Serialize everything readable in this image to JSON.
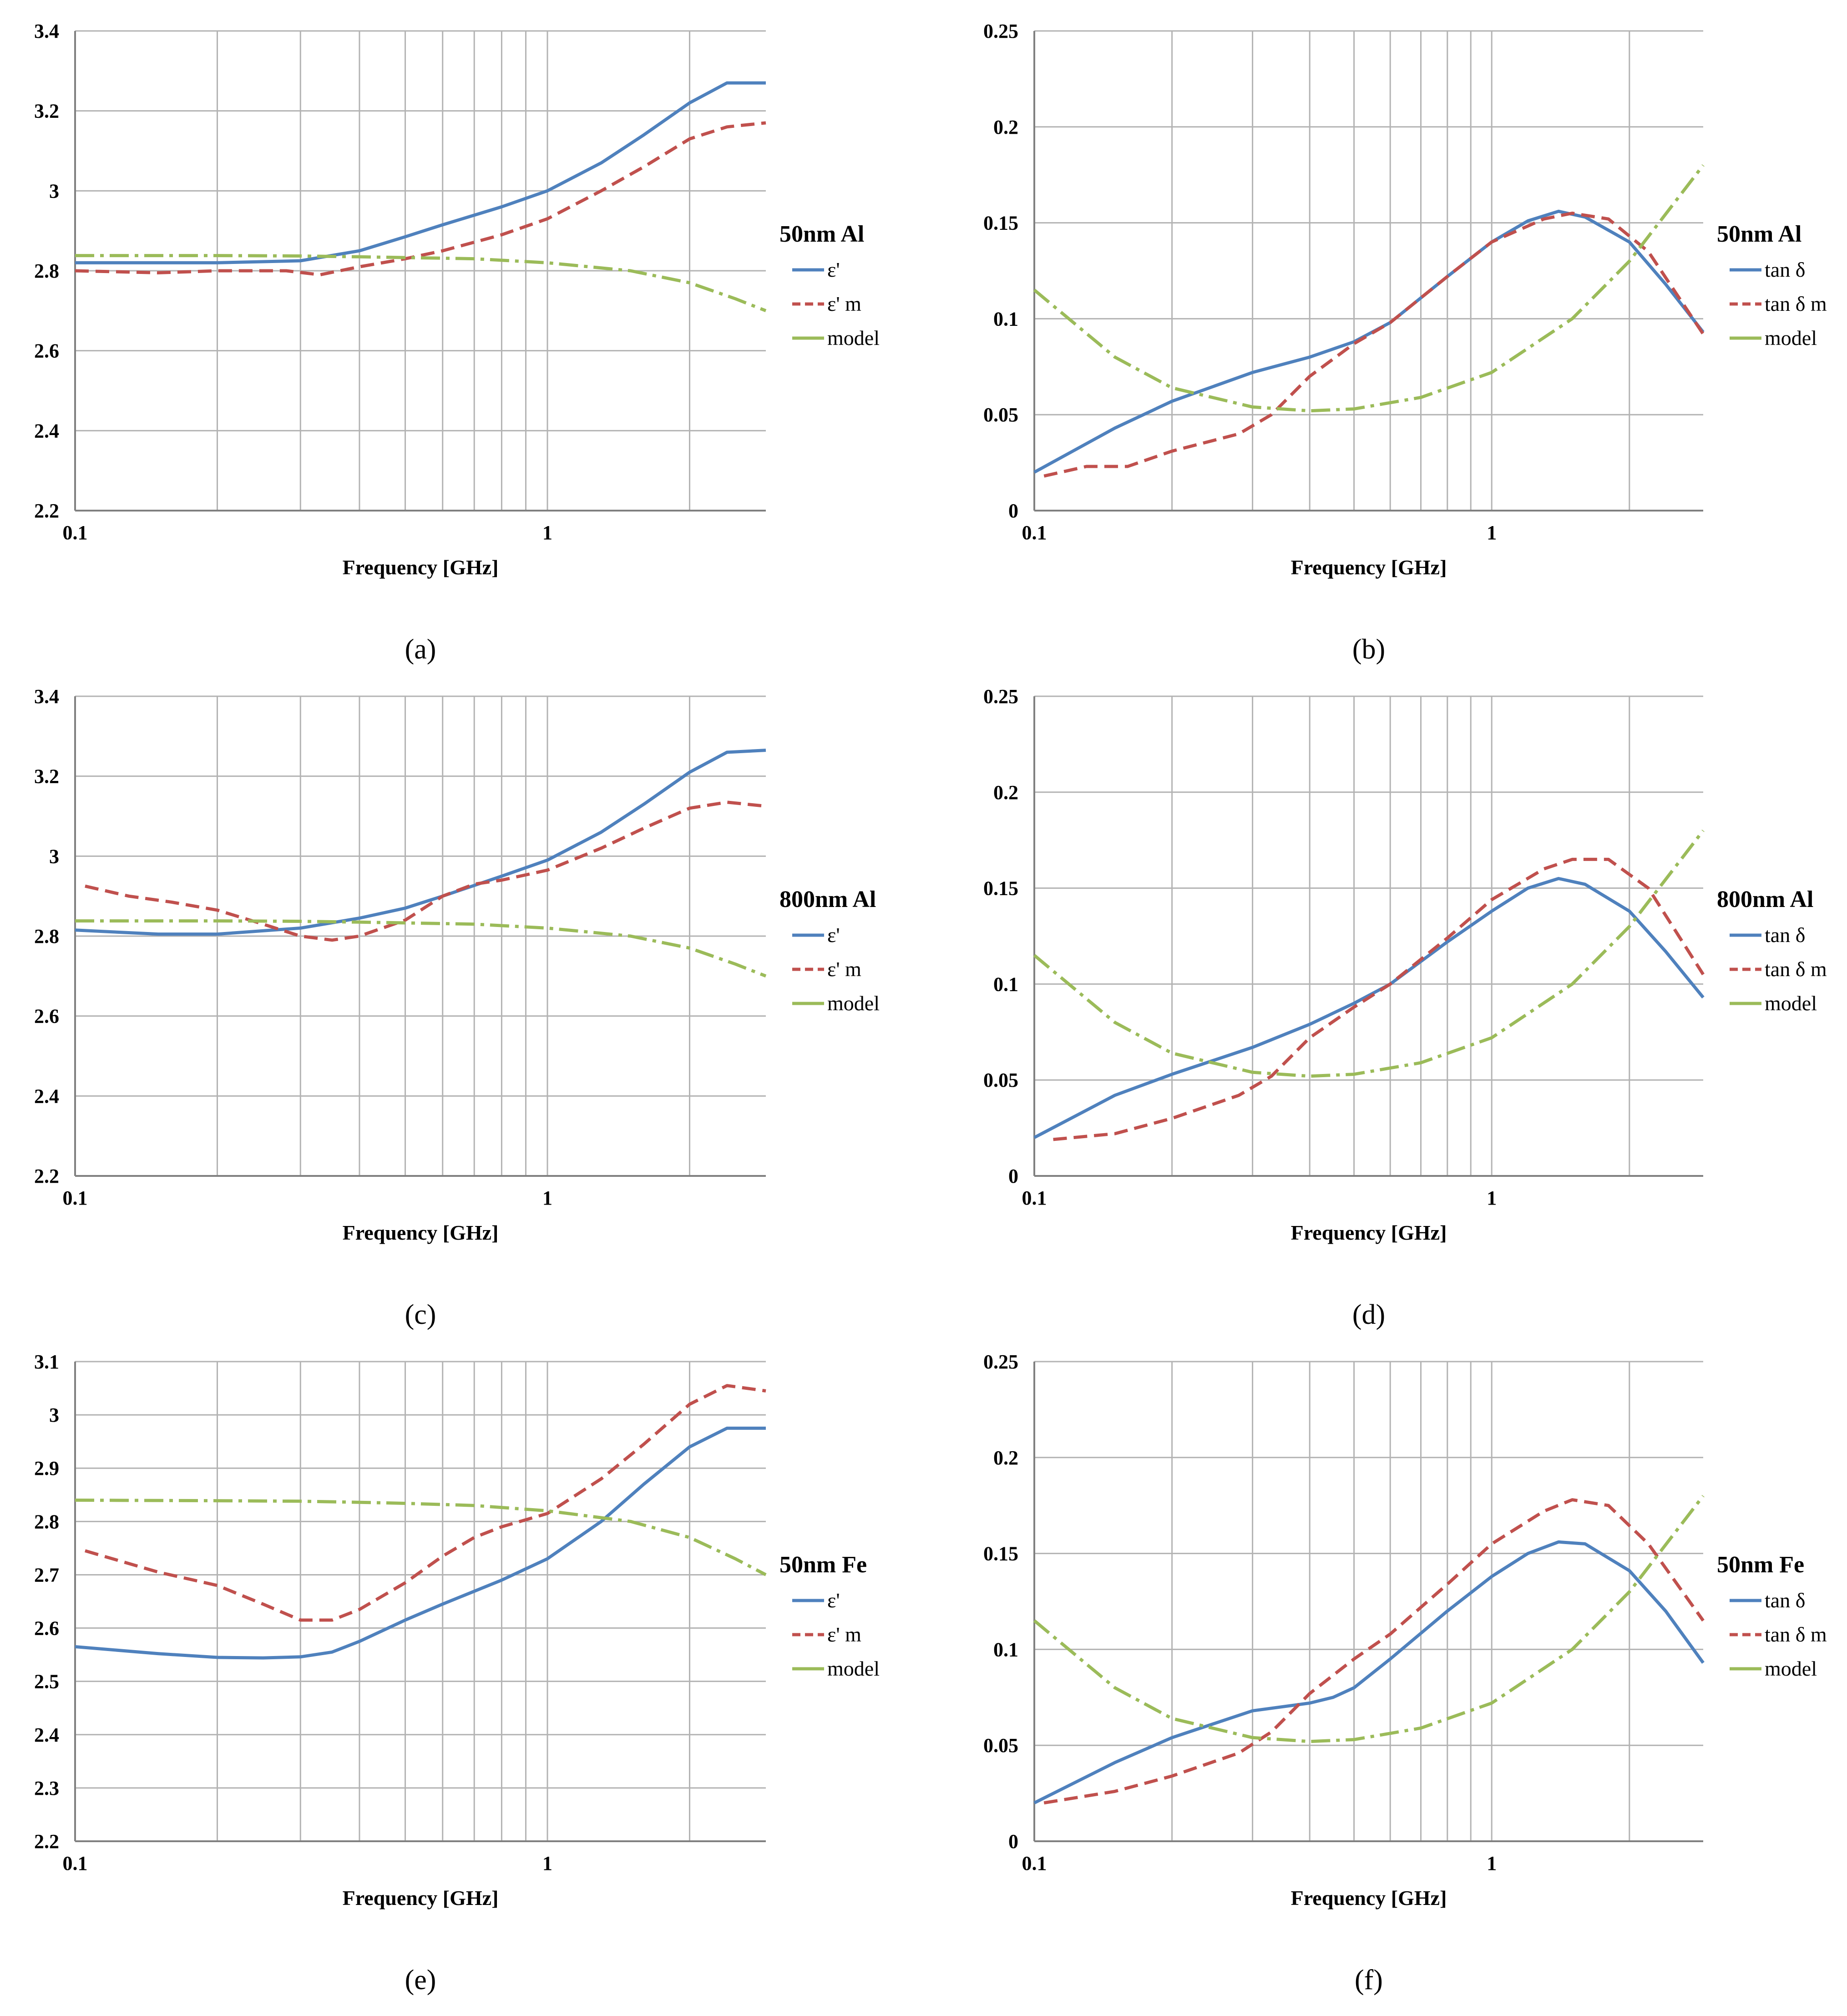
{
  "colors": {
    "eps": "#4f81bd",
    "meas": "#c0504d",
    "model": "#9bbb59",
    "grid": "#b3b3b3",
    "axis": "#808080"
  },
  "chart_data": [
    {
      "id": "a",
      "caption": "(a)",
      "type": "line",
      "xscale": "log",
      "xlim": [
        0.1,
        2.9
      ],
      "ylim": [
        2.2,
        3.4
      ],
      "xticks": [
        {
          "v": 0.1,
          "label": "0.1"
        },
        {
          "v": 1,
          "label": "1"
        }
      ],
      "yticks": [
        {
          "v": 2.2,
          "label": "2.2"
        },
        {
          "v": 2.4,
          "label": "2.4"
        },
        {
          "v": 2.6,
          "label": "2.6"
        },
        {
          "v": 2.8,
          "label": "2.8"
        },
        {
          "v": 3.0,
          "label": "3"
        },
        {
          "v": 3.2,
          "label": "3.2"
        },
        {
          "v": 3.4,
          "label": "3.4"
        }
      ],
      "xlabel": "Frequency [GHz]",
      "sample_label": "50nm Al",
      "grid": true,
      "legend_position": "right",
      "series": [
        {
          "name": "ε'",
          "style": "solid",
          "color_key": "eps",
          "x": [
            0.1,
            0.2,
            0.3,
            0.4,
            0.5,
            0.6,
            0.8,
            1.0,
            1.3,
            1.6,
            2.0,
            2.4,
            2.9
          ],
          "y": [
            2.82,
            2.82,
            2.825,
            2.85,
            2.885,
            2.915,
            2.96,
            3.0,
            3.07,
            3.14,
            3.22,
            3.27,
            3.27
          ]
        },
        {
          "name": "ε' m",
          "style": "dashed",
          "color_key": "meas",
          "x": [
            0.1,
            0.15,
            0.2,
            0.28,
            0.33,
            0.4,
            0.5,
            0.6,
            0.8,
            1.0,
            1.3,
            1.6,
            2.0,
            2.4,
            2.9
          ],
          "y": [
            2.8,
            2.795,
            2.8,
            2.8,
            2.79,
            2.81,
            2.83,
            2.85,
            2.89,
            2.93,
            3.0,
            3.06,
            3.13,
            3.16,
            3.17
          ]
        },
        {
          "name": "model",
          "style": "dashdot",
          "color_key": "model",
          "x": [
            0.1,
            0.2,
            0.3,
            0.4,
            0.5,
            0.7,
            1.0,
            1.5,
            2.0,
            2.5,
            2.9
          ],
          "y": [
            2.838,
            2.838,
            2.837,
            2.835,
            2.833,
            2.83,
            2.82,
            2.8,
            2.77,
            2.73,
            2.7
          ]
        }
      ]
    },
    {
      "id": "b",
      "caption": "(b)",
      "type": "line",
      "xscale": "log",
      "xlim": [
        0.1,
        2.9
      ],
      "ylim": [
        0,
        0.25
      ],
      "xticks": [
        {
          "v": 0.1,
          "label": "0.1"
        },
        {
          "v": 1,
          "label": "1"
        }
      ],
      "yticks": [
        {
          "v": 0,
          "label": "0"
        },
        {
          "v": 0.05,
          "label": "0.05"
        },
        {
          "v": 0.1,
          "label": "0.1"
        },
        {
          "v": 0.15,
          "label": "0.15"
        },
        {
          "v": 0.2,
          "label": "0.2"
        },
        {
          "v": 0.25,
          "label": "0.25"
        }
      ],
      "xlabel": "Frequency [GHz]",
      "sample_label": "50nm Al",
      "grid": true,
      "legend_position": "right",
      "series": [
        {
          "name": "tan δ",
          "style": "solid",
          "color_key": "eps",
          "x": [
            0.1,
            0.15,
            0.2,
            0.3,
            0.4,
            0.5,
            0.6,
            0.8,
            1.0,
            1.2,
            1.4,
            1.6,
            2.0,
            2.4,
            2.9
          ],
          "y": [
            0.02,
            0.043,
            0.057,
            0.072,
            0.08,
            0.088,
            0.098,
            0.122,
            0.14,
            0.151,
            0.156,
            0.153,
            0.14,
            0.118,
            0.093
          ]
        },
        {
          "name": "tan δ m",
          "style": "dashed",
          "color_key": "meas",
          "x": [
            0.105,
            0.13,
            0.16,
            0.2,
            0.28,
            0.33,
            0.4,
            0.5,
            0.6,
            0.8,
            1.0,
            1.3,
            1.5,
            1.8,
            2.2,
            2.9
          ],
          "y": [
            0.018,
            0.023,
            0.023,
            0.031,
            0.04,
            0.05,
            0.07,
            0.087,
            0.098,
            0.122,
            0.14,
            0.152,
            0.155,
            0.152,
            0.135,
            0.092
          ]
        },
        {
          "name": "model",
          "style": "dashdot",
          "color_key": "model",
          "x": [
            0.1,
            0.15,
            0.2,
            0.3,
            0.4,
            0.5,
            0.7,
            1.0,
            1.5,
            2.0,
            2.5,
            2.9
          ],
          "y": [
            0.115,
            0.08,
            0.064,
            0.054,
            0.052,
            0.053,
            0.059,
            0.072,
            0.1,
            0.13,
            0.16,
            0.18
          ]
        }
      ]
    },
    {
      "id": "c",
      "caption": "(c)",
      "type": "line",
      "xscale": "log",
      "xlim": [
        0.1,
        2.9
      ],
      "ylim": [
        2.2,
        3.4
      ],
      "xticks": [
        {
          "v": 0.1,
          "label": "0.1"
        },
        {
          "v": 1,
          "label": "1"
        }
      ],
      "yticks": [
        {
          "v": 2.2,
          "label": "2.2"
        },
        {
          "v": 2.4,
          "label": "2.4"
        },
        {
          "v": 2.6,
          "label": "2.6"
        },
        {
          "v": 2.8,
          "label": "2.8"
        },
        {
          "v": 3.0,
          "label": "3"
        },
        {
          "v": 3.2,
          "label": "3.2"
        },
        {
          "v": 3.4,
          "label": "3.4"
        }
      ],
      "xlabel": "Frequency [GHz]",
      "sample_label": "800nm Al",
      "grid": true,
      "legend_position": "right",
      "series": [
        {
          "name": "ε'",
          "style": "solid",
          "color_key": "eps",
          "x": [
            0.1,
            0.15,
            0.2,
            0.3,
            0.4,
            0.5,
            0.6,
            0.8,
            1.0,
            1.3,
            1.6,
            2.0,
            2.4,
            2.9
          ],
          "y": [
            2.815,
            2.805,
            2.805,
            2.82,
            2.845,
            2.87,
            2.9,
            2.95,
            2.99,
            3.06,
            3.13,
            3.21,
            3.26,
            3.265
          ]
        },
        {
          "name": "ε' m",
          "style": "dashed",
          "color_key": "meas",
          "x": [
            0.105,
            0.13,
            0.16,
            0.2,
            0.25,
            0.3,
            0.35,
            0.4,
            0.5,
            0.6,
            0.7,
            0.8,
            1.0,
            1.3,
            1.6,
            2.0,
            2.4,
            2.9
          ],
          "y": [
            2.925,
            2.9,
            2.885,
            2.865,
            2.83,
            2.8,
            2.79,
            2.8,
            2.84,
            2.9,
            2.93,
            2.94,
            2.965,
            3.02,
            3.07,
            3.12,
            3.135,
            3.125
          ]
        },
        {
          "name": "model",
          "style": "dashdot",
          "color_key": "model",
          "x": [
            0.1,
            0.2,
            0.3,
            0.4,
            0.5,
            0.7,
            1.0,
            1.5,
            2.0,
            2.5,
            2.9
          ],
          "y": [
            2.838,
            2.838,
            2.837,
            2.835,
            2.833,
            2.83,
            2.82,
            2.8,
            2.77,
            2.73,
            2.7
          ]
        }
      ]
    },
    {
      "id": "d",
      "caption": "(d)",
      "type": "line",
      "xscale": "log",
      "xlim": [
        0.1,
        2.9
      ],
      "ylim": [
        0,
        0.25
      ],
      "xticks": [
        {
          "v": 0.1,
          "label": "0.1"
        },
        {
          "v": 1,
          "label": "1"
        }
      ],
      "yticks": [
        {
          "v": 0,
          "label": "0"
        },
        {
          "v": 0.05,
          "label": "0.05"
        },
        {
          "v": 0.1,
          "label": "0.1"
        },
        {
          "v": 0.15,
          "label": "0.15"
        },
        {
          "v": 0.2,
          "label": "0.2"
        },
        {
          "v": 0.25,
          "label": "0.25"
        }
      ],
      "xlabel": "Frequency [GHz]",
      "sample_label": "800nm Al",
      "grid": true,
      "legend_position": "right",
      "series": [
        {
          "name": "tan δ",
          "style": "solid",
          "color_key": "eps",
          "x": [
            0.1,
            0.15,
            0.2,
            0.3,
            0.4,
            0.5,
            0.6,
            0.8,
            1.0,
            1.2,
            1.4,
            1.6,
            2.0,
            2.4,
            2.9
          ],
          "y": [
            0.02,
            0.042,
            0.053,
            0.067,
            0.079,
            0.09,
            0.1,
            0.122,
            0.138,
            0.15,
            0.155,
            0.152,
            0.138,
            0.117,
            0.093
          ]
        },
        {
          "name": "tan δ m",
          "style": "dashed",
          "color_key": "meas",
          "x": [
            0.11,
            0.15,
            0.2,
            0.28,
            0.33,
            0.4,
            0.5,
            0.6,
            0.8,
            1.0,
            1.3,
            1.5,
            1.8,
            2.2,
            2.9
          ],
          "y": [
            0.019,
            0.022,
            0.03,
            0.042,
            0.052,
            0.072,
            0.088,
            0.1,
            0.124,
            0.144,
            0.16,
            0.165,
            0.165,
            0.15,
            0.105
          ]
        },
        {
          "name": "model",
          "style": "dashdot",
          "color_key": "model",
          "x": [
            0.1,
            0.15,
            0.2,
            0.3,
            0.4,
            0.5,
            0.7,
            1.0,
            1.5,
            2.0,
            2.5,
            2.9
          ],
          "y": [
            0.115,
            0.08,
            0.064,
            0.054,
            0.052,
            0.053,
            0.059,
            0.072,
            0.1,
            0.13,
            0.16,
            0.18
          ]
        }
      ]
    },
    {
      "id": "e",
      "caption": "(e)",
      "type": "line",
      "xscale": "log",
      "xlim": [
        0.1,
        2.9
      ],
      "ylim": [
        2.2,
        3.1
      ],
      "xticks": [
        {
          "v": 0.1,
          "label": "0.1"
        },
        {
          "v": 1,
          "label": "1"
        }
      ],
      "yticks": [
        {
          "v": 2.2,
          "label": "2.2"
        },
        {
          "v": 2.3,
          "label": "2.3"
        },
        {
          "v": 2.4,
          "label": "2.4"
        },
        {
          "v": 2.5,
          "label": "2.5"
        },
        {
          "v": 2.6,
          "label": "2.6"
        },
        {
          "v": 2.7,
          "label": "2.7"
        },
        {
          "v": 2.8,
          "label": "2.8"
        },
        {
          "v": 2.9,
          "label": "2.9"
        },
        {
          "v": 3.0,
          "label": "3"
        },
        {
          "v": 3.1,
          "label": "3.1"
        }
      ],
      "xlabel": "Frequency [GHz]",
      "sample_label": "50nm Fe",
      "grid": true,
      "legend_position": "right",
      "series": [
        {
          "name": "ε'",
          "style": "solid",
          "color_key": "eps",
          "x": [
            0.1,
            0.15,
            0.2,
            0.25,
            0.3,
            0.35,
            0.4,
            0.5,
            0.6,
            0.8,
            1.0,
            1.3,
            1.6,
            2.0,
            2.4,
            2.9
          ],
          "y": [
            2.565,
            2.552,
            2.545,
            2.544,
            2.546,
            2.555,
            2.575,
            2.615,
            2.645,
            2.69,
            2.73,
            2.8,
            2.87,
            2.94,
            2.975,
            2.975
          ]
        },
        {
          "name": "ε' m",
          "style": "dashed",
          "color_key": "meas",
          "x": [
            0.105,
            0.15,
            0.2,
            0.25,
            0.3,
            0.35,
            0.4,
            0.5,
            0.6,
            0.7,
            0.8,
            1.0,
            1.3,
            1.6,
            2.0,
            2.4,
            2.9
          ],
          "y": [
            2.745,
            2.705,
            2.68,
            2.645,
            2.615,
            2.615,
            2.635,
            2.685,
            2.735,
            2.77,
            2.79,
            2.815,
            2.88,
            2.945,
            3.02,
            3.055,
            3.045
          ]
        },
        {
          "name": "model",
          "style": "dashdot",
          "color_key": "model",
          "x": [
            0.1,
            0.2,
            0.3,
            0.4,
            0.5,
            0.7,
            1.0,
            1.5,
            2.0,
            2.5,
            2.9
          ],
          "y": [
            2.84,
            2.839,
            2.838,
            2.836,
            2.834,
            2.83,
            2.82,
            2.8,
            2.77,
            2.73,
            2.7
          ]
        }
      ]
    },
    {
      "id": "f",
      "caption": "(f)",
      "type": "line",
      "xscale": "log",
      "xlim": [
        0.1,
        2.9
      ],
      "ylim": [
        0,
        0.25
      ],
      "xticks": [
        {
          "v": 0.1,
          "label": "0.1"
        },
        {
          "v": 1,
          "label": "1"
        }
      ],
      "yticks": [
        {
          "v": 0,
          "label": "0"
        },
        {
          "v": 0.05,
          "label": "0.05"
        },
        {
          "v": 0.1,
          "label": "0.1"
        },
        {
          "v": 0.15,
          "label": "0.15"
        },
        {
          "v": 0.2,
          "label": "0.2"
        },
        {
          "v": 0.25,
          "label": "0.25"
        }
      ],
      "xlabel": "Frequency [GHz]",
      "sample_label": "50nm Fe",
      "grid": true,
      "legend_position": "right",
      "series": [
        {
          "name": "tan δ",
          "style": "solid",
          "color_key": "eps",
          "x": [
            0.1,
            0.15,
            0.2,
            0.3,
            0.4,
            0.45,
            0.5,
            0.6,
            0.8,
            1.0,
            1.2,
            1.4,
            1.6,
            2.0,
            2.4,
            2.9
          ],
          "y": [
            0.02,
            0.041,
            0.054,
            0.068,
            0.072,
            0.075,
            0.08,
            0.095,
            0.12,
            0.138,
            0.15,
            0.156,
            0.155,
            0.141,
            0.12,
            0.093
          ]
        },
        {
          "name": "tan δ m",
          "style": "dashed",
          "color_key": "meas",
          "x": [
            0.105,
            0.15,
            0.2,
            0.28,
            0.33,
            0.4,
            0.5,
            0.6,
            0.8,
            1.0,
            1.3,
            1.5,
            1.8,
            2.2,
            2.9
          ],
          "y": [
            0.02,
            0.026,
            0.034,
            0.046,
            0.057,
            0.077,
            0.095,
            0.108,
            0.134,
            0.155,
            0.172,
            0.178,
            0.175,
            0.155,
            0.115
          ]
        },
        {
          "name": "model",
          "style": "dashdot",
          "color_key": "model",
          "x": [
            0.1,
            0.15,
            0.2,
            0.3,
            0.4,
            0.5,
            0.7,
            1.0,
            1.5,
            2.0,
            2.5,
            2.9
          ],
          "y": [
            0.115,
            0.08,
            0.064,
            0.054,
            0.052,
            0.053,
            0.059,
            0.072,
            0.1,
            0.13,
            0.16,
            0.18
          ]
        }
      ]
    }
  ]
}
